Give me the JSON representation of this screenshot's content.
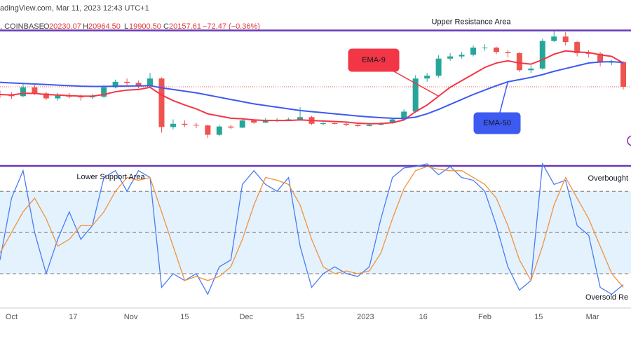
{
  "header": {
    "source": "adingView.com, Mar 11, 2023 12:43 UTC+1",
    "symbol": ", COINBASE",
    "ohlc": [
      {
        "label": "O",
        "value": "20230.07"
      },
      {
        "label": "H",
        "value": "20964.50"
      },
      {
        "label": "L",
        "value": "19900.50"
      },
      {
        "label": "C",
        "value": "20157.61"
      }
    ],
    "change": "−72.47 (−0.36%)"
  },
  "chart_data": [
    {
      "type": "candlestick",
      "x": [
        "09-28",
        "10-01",
        "10-04",
        "10-07",
        "10-10",
        "10-13",
        "10-16",
        "10-19",
        "10-22",
        "10-25",
        "10-28",
        "10-31",
        "11-03",
        "11-06",
        "11-09",
        "11-12",
        "11-15",
        "11-18",
        "11-21",
        "11-24",
        "11-27",
        "11-30",
        "12-03",
        "12-06",
        "12-09",
        "12-12",
        "12-15",
        "12-18",
        "12-21",
        "12-24",
        "12-27",
        "12-30",
        "01-02",
        "01-05",
        "01-08",
        "01-11",
        "01-14",
        "01-17",
        "01-20",
        "01-23",
        "01-26",
        "01-29",
        "02-01",
        "02-04",
        "02-07",
        "02-10",
        "02-13",
        "02-16",
        "02-19",
        "02-22",
        "02-25",
        "02-28",
        "03-03",
        "03-06",
        "03-09"
      ],
      "open": [
        19500,
        19400,
        19300,
        20100,
        19550,
        19100,
        19350,
        19250,
        19200,
        19250,
        20100,
        20600,
        20500,
        20200,
        20900,
        16500,
        16800,
        16700,
        16650,
        15800,
        16550,
        16450,
        17100,
        16900,
        17100,
        17150,
        17200,
        17400,
        16800,
        16850,
        16800,
        16700,
        16600,
        16700,
        16850,
        17200,
        17900,
        20900,
        21150,
        22700,
        22900,
        23050,
        23700,
        23700,
        23300,
        23200,
        21650,
        21800,
        24300,
        24700,
        24200,
        23200,
        23150,
        22350,
        22400
      ],
      "high": [
        19800,
        19650,
        20400,
        20300,
        19700,
        19600,
        19600,
        19450,
        19500,
        20300,
        20800,
        20900,
        20700,
        21400,
        21000,
        17200,
        17100,
        16900,
        16700,
        16700,
        16700,
        17200,
        17200,
        17300,
        17300,
        17350,
        18300,
        17500,
        16950,
        16900,
        16900,
        16750,
        16800,
        16950,
        17350,
        18100,
        21200,
        21400,
        23000,
        23200,
        23300,
        23900,
        24000,
        23800,
        23500,
        23300,
        22100,
        24500,
        25200,
        25100,
        24300,
        23500,
        23300,
        22600,
        22450
      ],
      "low": [
        19150,
        19050,
        19200,
        19400,
        18950,
        18900,
        19100,
        18900,
        19050,
        19150,
        20000,
        20300,
        20000,
        20100,
        16000,
        16300,
        16500,
        16400,
        15500,
        15700,
        16300,
        16400,
        16800,
        16850,
        16950,
        17050,
        17100,
        16700,
        16650,
        16750,
        16600,
        16500,
        16550,
        16650,
        16800,
        17150,
        17800,
        20600,
        21000,
        22500,
        22700,
        22900,
        23400,
        23100,
        22800,
        21500,
        21400,
        21700,
        24200,
        23900,
        22900,
        22800,
        22000,
        22100,
        19900
      ],
      "close": [
        19400,
        19300,
        20100,
        19550,
        19100,
        19350,
        19250,
        19200,
        19250,
        20100,
        20600,
        20500,
        20200,
        20900,
        16500,
        16800,
        16700,
        16650,
        15800,
        16550,
        16450,
        17100,
        16900,
        17100,
        17150,
        17200,
        17400,
        16800,
        16850,
        16800,
        16700,
        16600,
        16700,
        16850,
        17200,
        17900,
        20900,
        21150,
        22700,
        22900,
        23050,
        23700,
        23700,
        23300,
        23200,
        21650,
        21800,
        24300,
        24700,
        24200,
        23200,
        23150,
        22350,
        22400,
        20150
      ],
      "up_color": "#26a69a",
      "down_color": "#ef5350",
      "series": [
        {
          "name": "EMA-9",
          "color": "#f23645",
          "values": [
            19450,
            19400,
            19550,
            19550,
            19450,
            19400,
            19350,
            19300,
            19300,
            19450,
            19700,
            19850,
            19900,
            20100,
            19400,
            18900,
            18500,
            18150,
            17700,
            17500,
            17300,
            17250,
            17150,
            17100,
            17100,
            17100,
            17150,
            17100,
            17050,
            17000,
            16950,
            16850,
            16800,
            16820,
            16900,
            17150,
            17900,
            18500,
            19300,
            20100,
            20700,
            21300,
            21900,
            22300,
            22500,
            22300,
            22200,
            22600,
            23100,
            23400,
            23300,
            23250,
            23050,
            22900,
            22300
          ]
        },
        {
          "name": "EMA-50",
          "color": "#3d5af1",
          "values": [
            20550,
            20500,
            20450,
            20400,
            20350,
            20300,
            20250,
            20200,
            20180,
            20180,
            20200,
            20220,
            20230,
            20250,
            20050,
            19900,
            19750,
            19600,
            19400,
            19200,
            19000,
            18800,
            18600,
            18450,
            18300,
            18150,
            18000,
            17900,
            17800,
            17700,
            17600,
            17500,
            17420,
            17350,
            17300,
            17280,
            17400,
            17700,
            18100,
            18550,
            19000,
            19450,
            19850,
            20250,
            20600,
            20800,
            21000,
            21250,
            21550,
            21800,
            22050,
            22300,
            22400,
            22420,
            22350
          ]
        }
      ],
      "resistance": {
        "text": "Upper Resistance Area",
        "value": 25250,
        "color": "#673ab7"
      },
      "xlim": [
        "09-28",
        "03-11"
      ],
      "ylim": [
        13300,
        25600
      ]
    },
    {
      "type": "line",
      "x": [
        "09-28",
        "10-01",
        "10-04",
        "10-07",
        "10-10",
        "10-13",
        "10-16",
        "10-19",
        "10-22",
        "10-25",
        "10-28",
        "10-31",
        "11-03",
        "11-06",
        "11-09",
        "11-12",
        "11-15",
        "11-18",
        "11-21",
        "11-24",
        "11-27",
        "11-30",
        "12-03",
        "12-06",
        "12-09",
        "12-12",
        "12-15",
        "12-18",
        "12-21",
        "12-24",
        "12-27",
        "12-30",
        "01-02",
        "01-05",
        "01-08",
        "01-11",
        "01-14",
        "01-17",
        "01-20",
        "01-23",
        "01-26",
        "01-29",
        "02-01",
        "02-04",
        "02-07",
        "02-10",
        "02-13",
        "02-16",
        "02-19",
        "02-22",
        "02-25",
        "02-28",
        "03-03",
        "03-06",
        "03-09"
      ],
      "series": [
        {
          "color": "#4a7bf7",
          "values": [
            30,
            75,
            95,
            50,
            20,
            45,
            65,
            45,
            55,
            90,
            95,
            80,
            95,
            90,
            10,
            20,
            15,
            20,
            5,
            25,
            30,
            85,
            95,
            85,
            80,
            90,
            40,
            10,
            20,
            25,
            20,
            18,
            25,
            60,
            90,
            97,
            98,
            100,
            92,
            98,
            90,
            88,
            80,
            55,
            25,
            8,
            15,
            100,
            85,
            88,
            55,
            48,
            10,
            5,
            12
          ]
        },
        {
          "color": "#f2923c",
          "values": [
            35,
            50,
            65,
            75,
            60,
            40,
            45,
            55,
            55,
            65,
            80,
            90,
            88,
            90,
            65,
            40,
            15,
            18,
            15,
            18,
            25,
            45,
            70,
            90,
            88,
            85,
            70,
            45,
            25,
            20,
            22,
            20,
            22,
            35,
            60,
            82,
            95,
            98,
            96,
            95,
            95,
            90,
            85,
            75,
            55,
            30,
            15,
            40,
            70,
            90,
            75,
            60,
            40,
            20,
            10
          ]
        }
      ],
      "levels": [
        80,
        50,
        20
      ],
      "band": [
        20,
        80
      ],
      "band_color": "#e3f2fd",
      "annotations": [
        {
          "text": "Lower Support Area"
        },
        {
          "text": "Overbought"
        },
        {
          "text": "Oversold Re"
        }
      ],
      "xlim": [
        "09-28",
        "03-11"
      ],
      "ylim": [
        -5,
        100
      ],
      "xticks": [
        {
          "value": "10-01",
          "label": "Oct"
        },
        {
          "value": "10-17",
          "label": "17"
        },
        {
          "value": "11-01",
          "label": "Nov"
        },
        {
          "value": "11-15",
          "label": "15"
        },
        {
          "value": "12-01",
          "label": "Dec"
        },
        {
          "value": "12-15",
          "label": "15"
        },
        {
          "value": "01-01",
          "label": "2023"
        },
        {
          "value": "01-16",
          "label": "16"
        },
        {
          "value": "02-01",
          "label": "Feb"
        },
        {
          "value": "02-15",
          "label": "15"
        },
        {
          "value": "03-01",
          "label": "Mar"
        }
      ]
    }
  ]
}
